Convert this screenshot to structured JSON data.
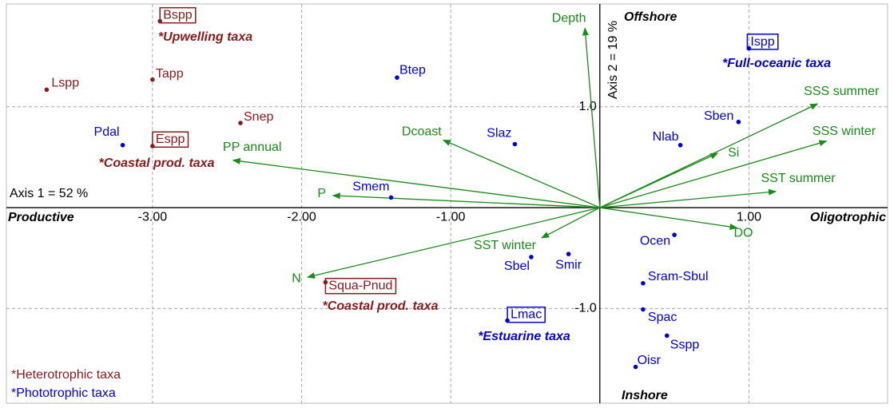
{
  "chart_data": {
    "type": "scatter",
    "xlabel": "Axis 1 = 52 %",
    "ylabel": "Axis 2 = 19 %",
    "xlim": [
      -3.98,
      1.93
    ],
    "ylim": [
      -1.94,
      2.02
    ],
    "xticks": [
      {
        "value": -3,
        "label": "-3.00"
      },
      {
        "value": -2,
        "label": "-2.00"
      },
      {
        "value": -1,
        "label": "-1.00"
      },
      {
        "value": 1,
        "label": "1.00"
      }
    ],
    "yticks": [
      {
        "value": 1,
        "label": "1.0"
      },
      {
        "value": -1,
        "label": "-1.0"
      }
    ],
    "grid": true,
    "corner_labels": {
      "left": "Productive",
      "right": "Oligotrophic",
      "top": "Offshore",
      "bottom": "Inshore"
    },
    "series": [
      {
        "name": "*Heterotrophic taxa",
        "color": "#8b1a1a",
        "labels": [
          "Bspp",
          "Lspp",
          "Tapp",
          "Snep",
          "Espp",
          "Squa-Pnud"
        ],
        "x": [
          -2.95,
          -3.71,
          -3.0,
          -2.41,
          -3.0,
          -1.84
        ],
        "values": [
          1.85,
          1.17,
          1.27,
          0.84,
          0.61,
          -0.74
        ]
      },
      {
        "name": "*Phototrophic taxa",
        "color": "#0000e0",
        "labels": [
          "Btep",
          "Pdal",
          "Slaz",
          "Smem",
          "Ispp",
          "Sben",
          "Nlab",
          "Ocen",
          "Sbel",
          "Smir",
          "Sram-Sbul",
          "Lmac",
          "Spac",
          "Sspp",
          "Oisr"
        ],
        "x": [
          -1.36,
          -3.2,
          -0.57,
          -1.4,
          1.0,
          0.93,
          0.54,
          0.5,
          -0.46,
          -0.21,
          0.29,
          -0.62,
          0.29,
          0.45,
          0.24
        ],
        "values": [
          1.29,
          0.62,
          0.63,
          0.1,
          1.58,
          0.85,
          0.62,
          -0.27,
          -0.49,
          -0.46,
          -0.75,
          -1.12,
          -1.01,
          -1.27,
          -1.58
        ]
      }
    ],
    "vectors": {
      "color": "#1a8a1a",
      "labels": [
        "Depth",
        "SSS summer",
        "SSS winter",
        "Si",
        "SST summer",
        "DO",
        "Dcoast",
        "PP annual",
        "P",
        "SST winter",
        "N"
      ],
      "x": [
        -0.1,
        1.46,
        1.52,
        0.79,
        1.18,
        0.92,
        -1.05,
        -2.46,
        -1.79,
        -0.39,
        -1.96
      ],
      "values": [
        1.78,
        1.03,
        0.66,
        0.54,
        0.16,
        -0.2,
        0.67,
        0.47,
        0.12,
        -0.3,
        -0.69
      ]
    },
    "annotations": [
      {
        "text": "*Upwelling taxa",
        "series": 0
      },
      {
        "text": "*Coastal prod. taxa",
        "series": 0
      },
      {
        "text": "*Coastal prod. taxa",
        "series": 0
      },
      {
        "text": "*Full-oceanic taxa",
        "series": 1
      },
      {
        "text": "*Estuarine taxa",
        "series": 1
      }
    ]
  }
}
